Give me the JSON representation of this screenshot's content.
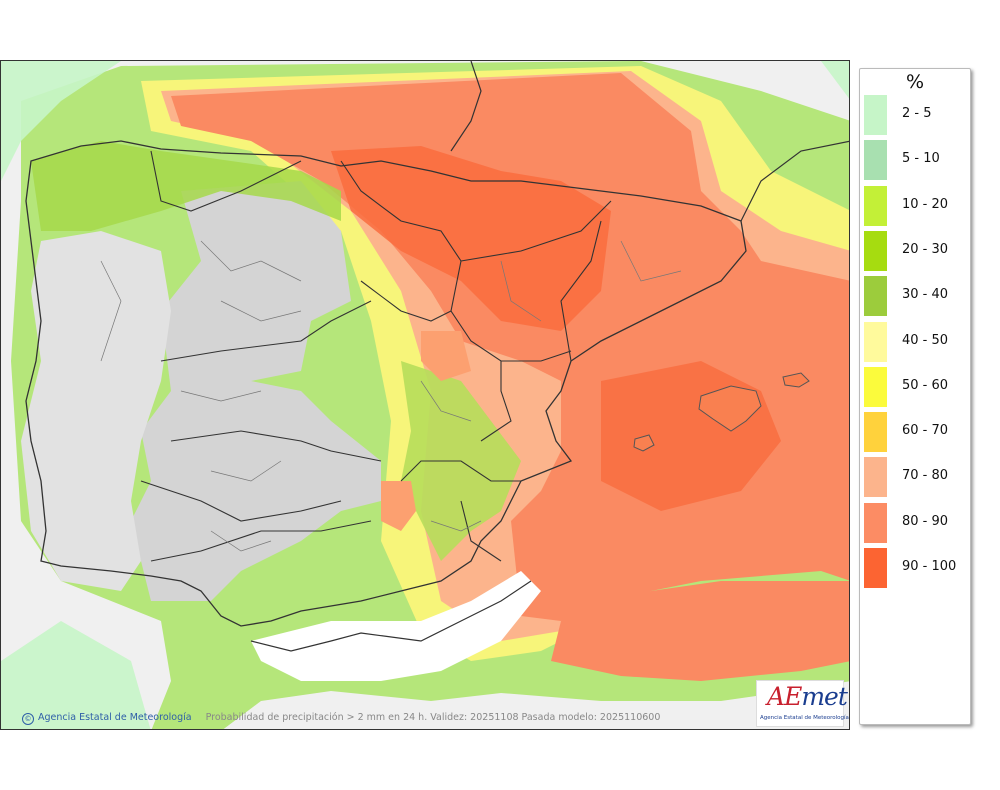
{
  "legend": {
    "unit": "%",
    "items": [
      {
        "label": "2 - 5",
        "color": "#c6f5c8"
      },
      {
        "label": "5 - 10",
        "color": "#a8e0b0"
      },
      {
        "label": "10 - 20",
        "color": "#c3f037"
      },
      {
        "label": "20 - 30",
        "color": "#a6dc10"
      },
      {
        "label": "30 - 40",
        "color": "#9ccc3c"
      },
      {
        "label": "40 - 50",
        "color": "#fffa9c"
      },
      {
        "label": "50 - 60",
        "color": "#fbfb3c"
      },
      {
        "label": "60 - 70",
        "color": "#ffd23c"
      },
      {
        "label": "70 - 80",
        "color": "#fcb48c"
      },
      {
        "label": "80 - 90",
        "color": "#fc8c64"
      },
      {
        "label": "90 - 100",
        "color": "#fc6432"
      }
    ]
  },
  "footer": {
    "copyright": "©",
    "organization": "Agencia Estatal de Meteorología",
    "caption": "Probabilidad de precipitación > 2 mm en 24 h. Validez: 20251108 Pasada modelo: 2025110600"
  },
  "logo": {
    "word_a": "A",
    "word_e": "E",
    "word_rest": "met",
    "subtitle": "Agencia Estatal de Meteorología"
  }
}
